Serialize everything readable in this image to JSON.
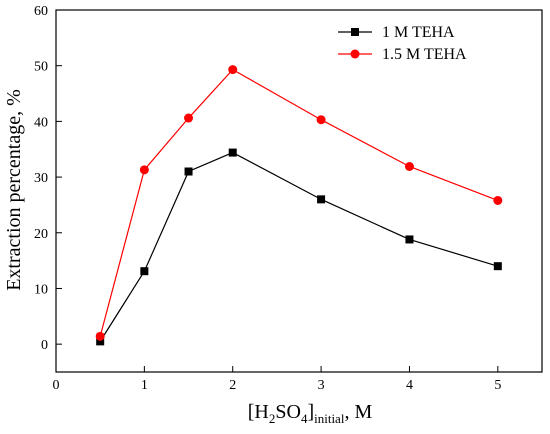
{
  "chart_data": {
    "type": "line",
    "xlabel": {
      "prefix": "[H",
      "sub1": "2",
      "mid": "SO",
      "sub2": "4",
      "close": "]",
      "sub3": "initial",
      "suffix": ", M"
    },
    "ylabel": "Extraction percentage, %",
    "xlim": [
      0,
      5.5
    ],
    "ylim": [
      -5,
      60
    ],
    "xticks": [
      0,
      1,
      2,
      3,
      4,
      5
    ],
    "yticks": [
      0,
      10,
      20,
      30,
      40,
      50,
      60
    ],
    "grid": false,
    "legend_position": "top-right",
    "series": [
      {
        "name": "1 M TEHA",
        "color": "#000000",
        "marker": "square",
        "x": [
          0.5,
          1,
          1.5,
          2,
          3,
          4,
          5
        ],
        "y": [
          0.5,
          13.1,
          31.0,
          34.4,
          26.0,
          18.8,
          14.0
        ]
      },
      {
        "name": "1.5 M TEHA",
        "color": "#ff0000",
        "marker": "circle",
        "x": [
          0.5,
          1,
          1.5,
          2,
          3,
          4,
          5
        ],
        "y": [
          1.4,
          31.3,
          40.6,
          49.3,
          40.3,
          31.9,
          25.8
        ]
      }
    ]
  }
}
